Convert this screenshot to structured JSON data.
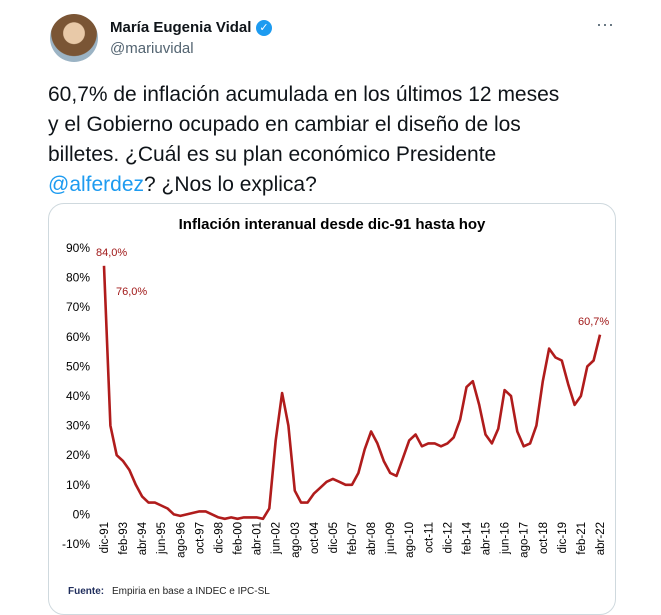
{
  "tweet": {
    "name": "María Eugenia Vidal",
    "handle": "@mariuvidal",
    "text_lines": [
      "60,7% de inflación acumulada en los últimos 12 meses",
      "y el Gobierno ocupado en cambiar el diseño de los",
      "billetes. ¿Cuál es su plan económico Presidente"
    ],
    "mention": "@alferdez",
    "text_end": "? ¿Nos lo explica?"
  },
  "chart_data": {
    "type": "line",
    "title": "Inflación interanual desde dic-91 hasta hoy",
    "categories": [
      "dic-91",
      null,
      null,
      "feb-93",
      null,
      null,
      "abr-94",
      null,
      null,
      "jun-95",
      null,
      null,
      "ago-96",
      null,
      null,
      "oct-97",
      null,
      null,
      "dic-98",
      null,
      null,
      "feb-00",
      null,
      null,
      "abr-01",
      null,
      null,
      "jun-02",
      null,
      null,
      "ago-03",
      null,
      null,
      "oct-04",
      null,
      null,
      "dic-05",
      null,
      null,
      "feb-07",
      null,
      null,
      "abr-08",
      null,
      null,
      "jun-09",
      null,
      null,
      "ago-10",
      null,
      null,
      "oct-11",
      null,
      null,
      "dic-12",
      null,
      null,
      "feb-14",
      null,
      null,
      "abr-15",
      null,
      null,
      "jun-16",
      null,
      null,
      "ago-17",
      null,
      null,
      "oct-18",
      null,
      null,
      "dic-19",
      null,
      null,
      "feb-21",
      null,
      null,
      "abr-22"
    ],
    "series": [
      {
        "name": "Inflación interanual",
        "color": "#b01c1c",
        "values": [
          84,
          30,
          20,
          18,
          15,
          10,
          6,
          4,
          4,
          3,
          2,
          0,
          -0.5,
          0,
          0.5,
          1,
          1,
          0,
          -1,
          -1.5,
          -1,
          -1.5,
          -1,
          -1,
          -1,
          -1.5,
          2,
          25,
          41,
          30,
          8,
          4,
          4,
          7,
          9,
          11,
          12,
          11,
          10,
          10,
          14,
          22,
          28,
          24,
          18,
          14,
          13,
          19,
          25,
          27,
          23,
          24,
          24,
          23,
          24,
          26,
          32,
          43,
          45,
          37,
          27,
          24,
          29,
          42,
          40,
          28,
          23,
          24,
          30,
          45,
          56,
          53,
          52,
          44,
          37,
          40,
          50,
          52,
          60.7
        ]
      }
    ],
    "ylim": [
      -10,
      90
    ],
    "yticks": [
      {
        "value": -10,
        "label": "-10%"
      },
      {
        "value": 0,
        "label": "0%"
      },
      {
        "value": 10,
        "label": "10%"
      },
      {
        "value": 20,
        "label": "20%"
      },
      {
        "value": 30,
        "label": "30%"
      },
      {
        "value": 40,
        "label": "40%"
      },
      {
        "value": 50,
        "label": "50%"
      },
      {
        "value": 60,
        "label": "60%"
      },
      {
        "value": 70,
        "label": "70%"
      },
      {
        "value": 80,
        "label": "80%"
      },
      {
        "value": 90,
        "label": "90%"
      }
    ],
    "annotations": [
      "84,0%",
      "76,0%",
      "60,7%"
    ],
    "source_label": "Fuente:",
    "source": "Empiria en base a INDEC e IPC-SL"
  }
}
